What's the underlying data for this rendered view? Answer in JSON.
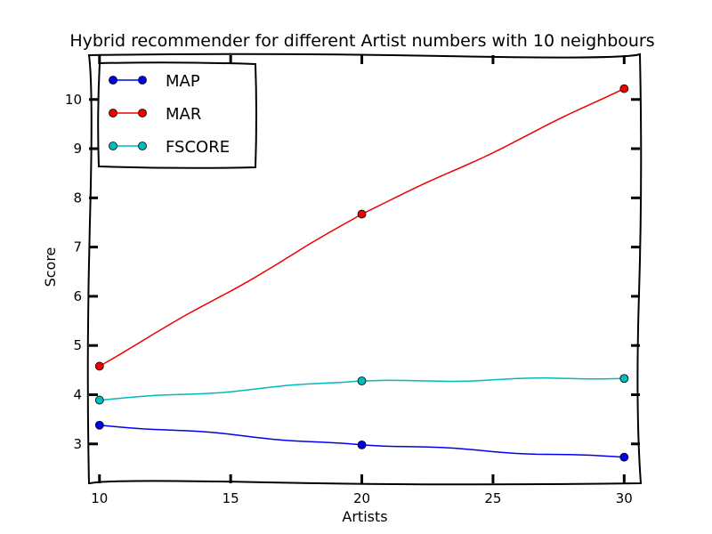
{
  "chart_data": {
    "type": "line",
    "title": "Hybrid recommender for different Artist numbers with 10 neighbours",
    "xlabel": "Artists",
    "ylabel": "Score",
    "x": [
      10,
      20,
      30
    ],
    "xlim": [
      9.6,
      30.6
    ],
    "ylim": [
      2.2,
      10.9
    ],
    "xticks": [
      10,
      15,
      20,
      25,
      30
    ],
    "yticks": [
      3,
      4,
      5,
      6,
      7,
      8,
      9,
      10
    ],
    "grid": false,
    "legend_position": "top-left",
    "series": [
      {
        "name": "MAP",
        "color": "#0000ee",
        "values": [
          3.38,
          2.98,
          2.73
        ]
      },
      {
        "name": "MAR",
        "color": "#ee0000",
        "values": [
          4.58,
          7.67,
          10.22
        ]
      },
      {
        "name": "FSCORE",
        "color": "#00bbbb",
        "values": [
          3.89,
          4.28,
          4.33
        ]
      }
    ]
  }
}
